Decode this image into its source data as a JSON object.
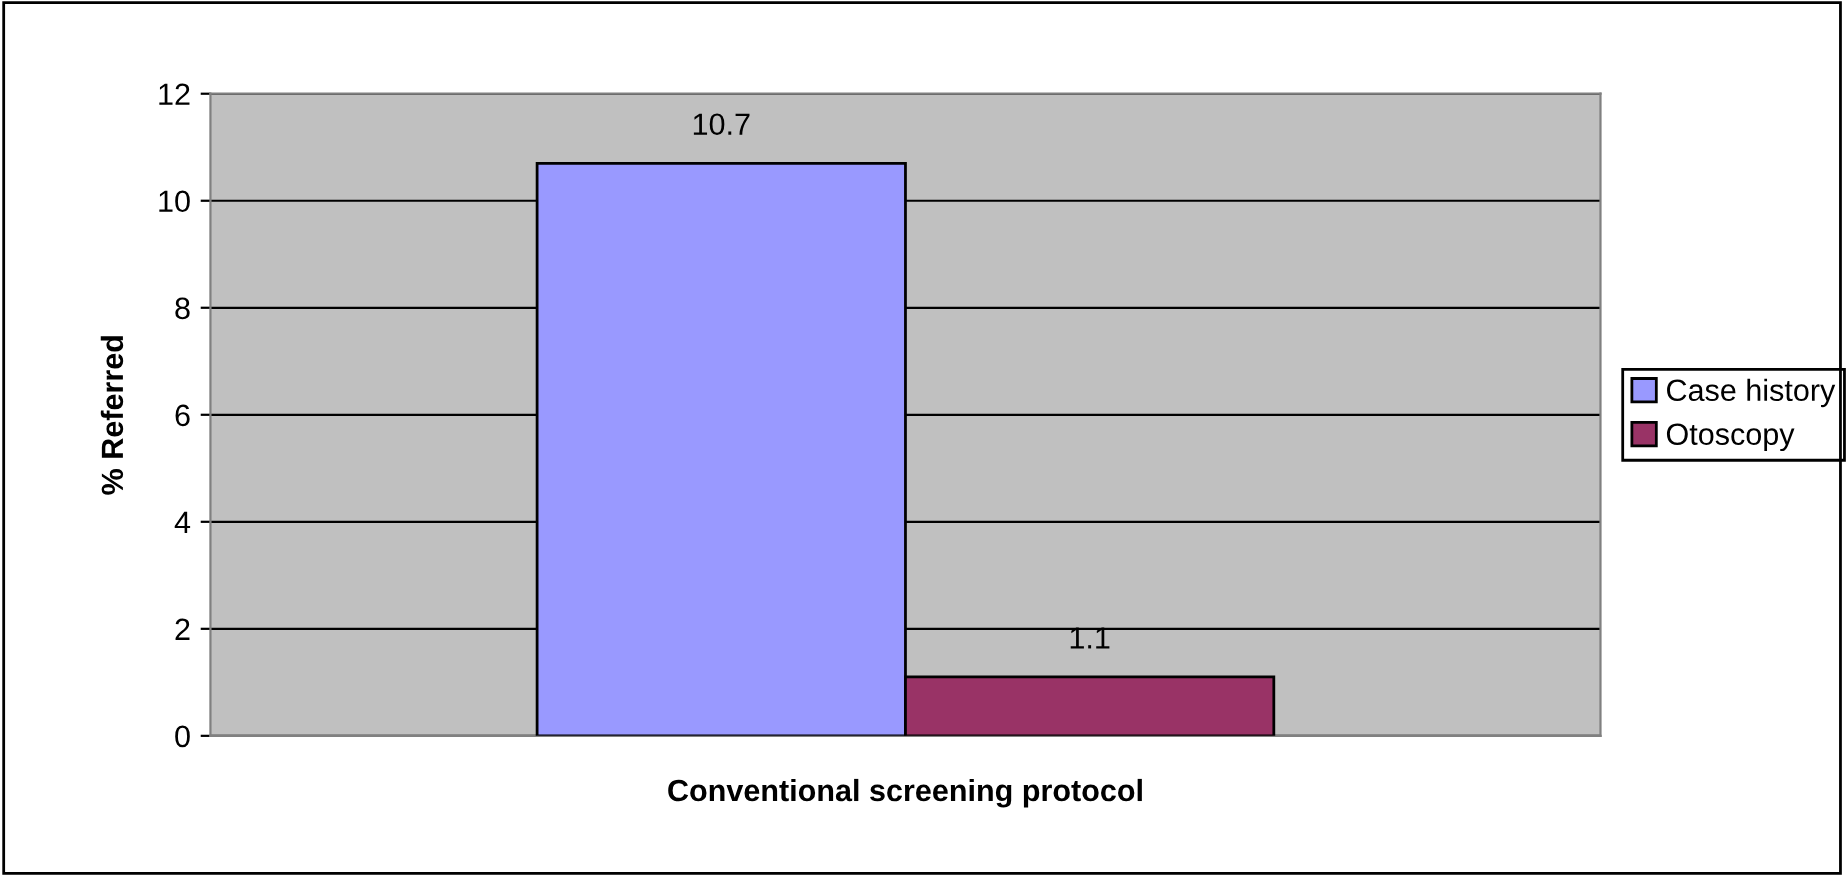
{
  "chart_data": {
    "type": "bar",
    "xlabel": "Conventional screening protocol",
    "ylabel": "% Referred",
    "categories": [
      null
    ],
    "series": [
      {
        "name": "Case history",
        "color": "#9999ff",
        "values": [
          10.7
        ]
      },
      {
        "name": "Otoscopy",
        "color": "#993366",
        "values": [
          1.1
        ]
      }
    ],
    "ylim": [
      0,
      12
    ],
    "yticks": [
      0,
      2,
      4,
      6,
      8,
      10,
      12
    ],
    "grid": "y",
    "legend": "right",
    "data_labels": true
  }
}
